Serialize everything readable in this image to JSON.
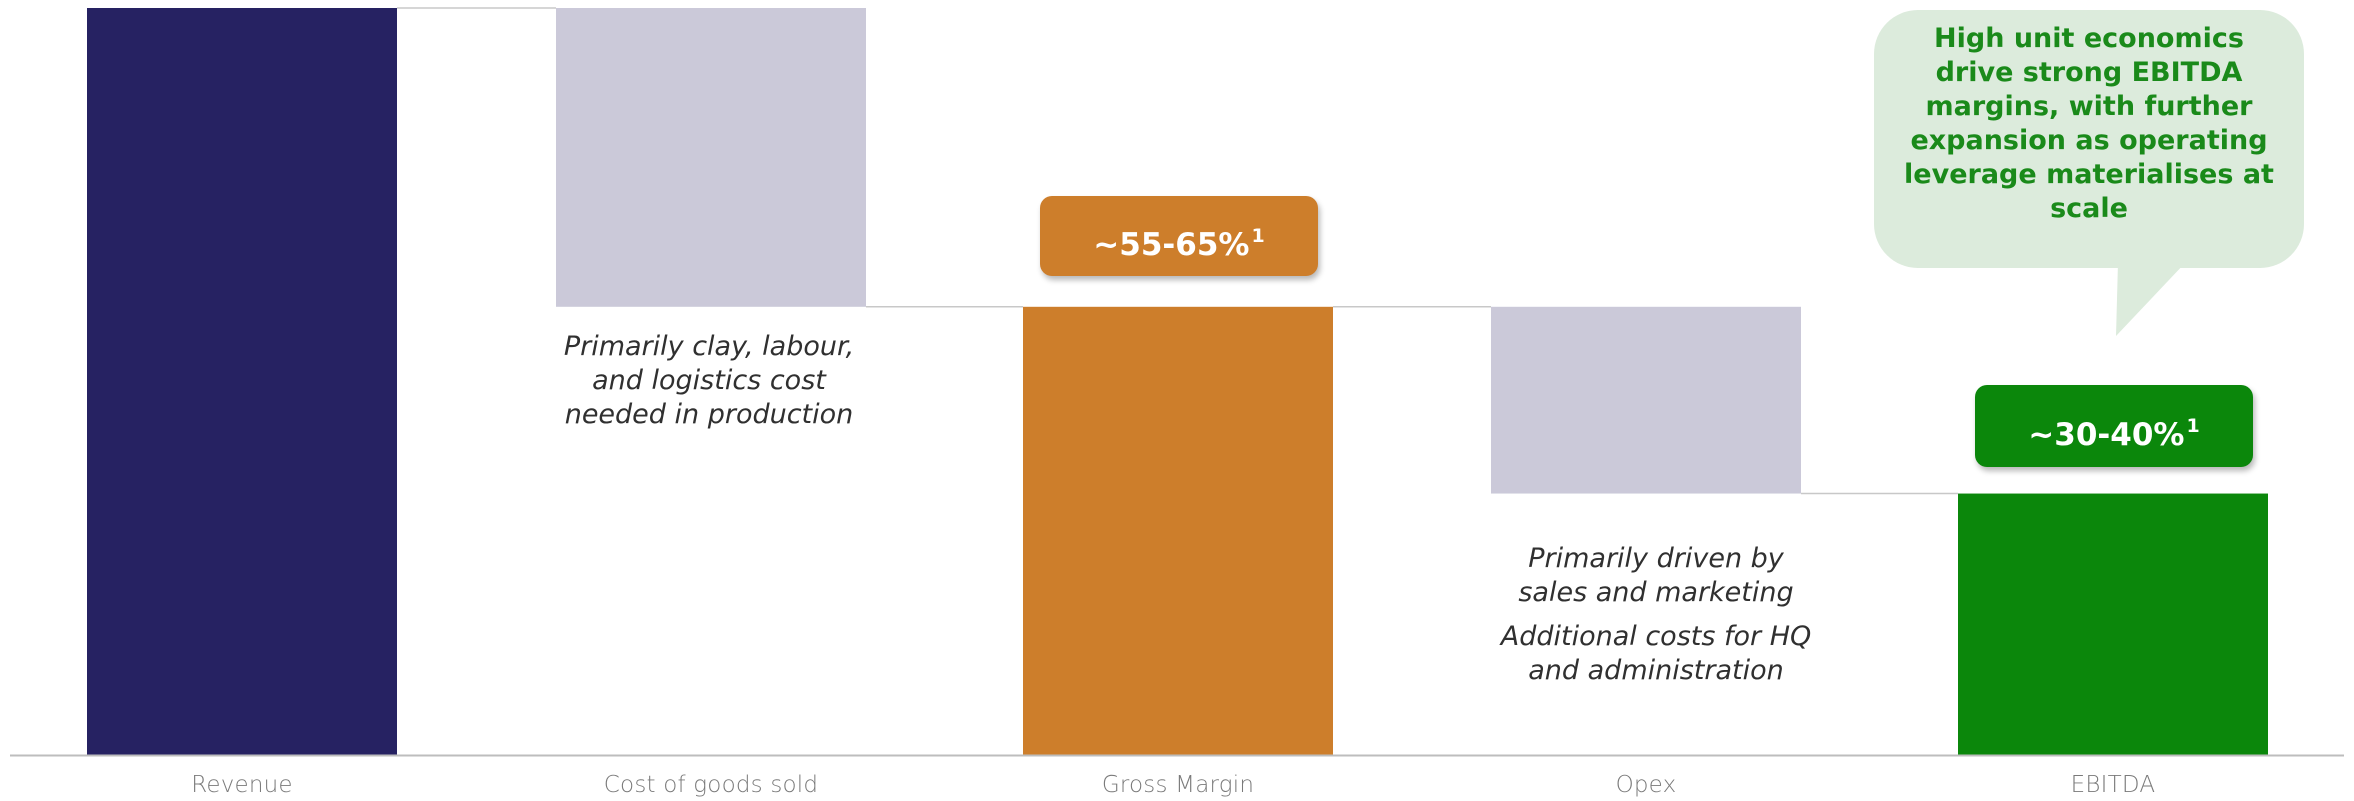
{
  "chart_data": {
    "type": "bar",
    "variant": "waterfall",
    "categories": [
      "Revenue",
      "Cost of goods sold",
      "Gross Margin",
      "Opex",
      "EBITDA"
    ],
    "bars": [
      {
        "category": "Revenue",
        "start": 0,
        "end": 100,
        "kind": "total"
      },
      {
        "category": "Cost of goods sold",
        "start": 60,
        "end": 100,
        "kind": "decrease"
      },
      {
        "category": "Gross Margin",
        "start": 0,
        "end": 60,
        "kind": "subtotal"
      },
      {
        "category": "Opex",
        "start": 35,
        "end": 60,
        "kind": "decrease"
      },
      {
        "category": "EBITDA",
        "start": 0,
        "end": 35,
        "kind": "total"
      }
    ],
    "ylim": [
      0,
      100
    ],
    "grid": false,
    "legend": "none",
    "title": "",
    "xlabel": "",
    "ylabel": ""
  },
  "labels": {
    "gross_margin": {
      "text": "~55-65%",
      "footnote": "1"
    },
    "ebitda": {
      "text": "~30-40%",
      "footnote": "1"
    }
  },
  "annotations": {
    "cogs_note": "Primarily clay, labour, and logistics cost needed in production",
    "opex_note_1": "Primarily driven by sales and marketing",
    "opex_note_2": "Additional costs for HQ and administration"
  },
  "callout": {
    "text": "High unit economics drive strong EBITDA margins, with further expansion as operating leverage materialises at scale"
  },
  "colors": {
    "revenue": "#262262",
    "decrease": "#cbc9d9",
    "gross_margin": "#cd7e2b",
    "ebitda": "#0b870b",
    "callout_bg": "#dcebdc",
    "callout_text": "#1a8a1a",
    "connector": "#c8c8c8",
    "axis": "#bdbdbd"
  }
}
